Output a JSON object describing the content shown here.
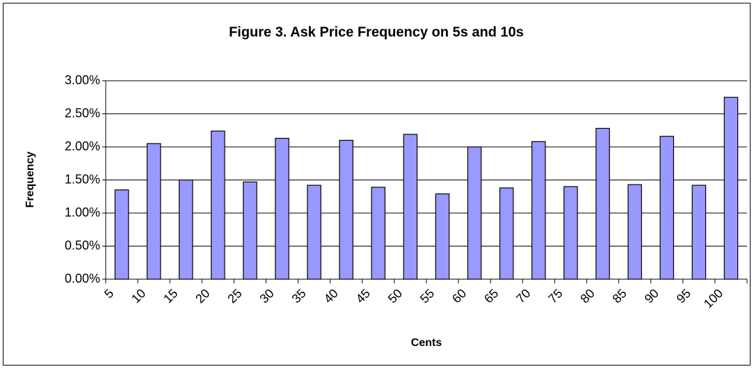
{
  "chart_data": {
    "type": "bar",
    "title": "Figure 3. Ask Price Frequency on 5s and 10s",
    "x_label": "Cents",
    "y_label": "Frequency",
    "categories": [
      "5",
      "10",
      "15",
      "20",
      "25",
      "30",
      "35",
      "40",
      "45",
      "50",
      "55",
      "60",
      "65",
      "70",
      "75",
      "80",
      "85",
      "90",
      "95",
      "100"
    ],
    "values": [
      1.35,
      2.05,
      1.5,
      2.24,
      1.47,
      2.13,
      1.42,
      2.1,
      1.39,
      2.19,
      1.29,
      2.0,
      1.38,
      2.08,
      1.4,
      2.28,
      1.43,
      2.16,
      1.42,
      2.75
    ],
    "color": "#9999ff",
    "ylim": [
      0,
      3
    ],
    "yticks": [
      {
        "value": 0,
        "label": "0.00%"
      },
      {
        "value": 0.5,
        "label": "0.50%"
      },
      {
        "value": 1,
        "label": "1.00%"
      },
      {
        "value": 1.5,
        "label": "1.50%"
      },
      {
        "value": 2,
        "label": "2.00%"
      },
      {
        "value": 2.5,
        "label": "2.50%"
      },
      {
        "value": 3,
        "label": "3.00%"
      }
    ],
    "grid": true
  }
}
